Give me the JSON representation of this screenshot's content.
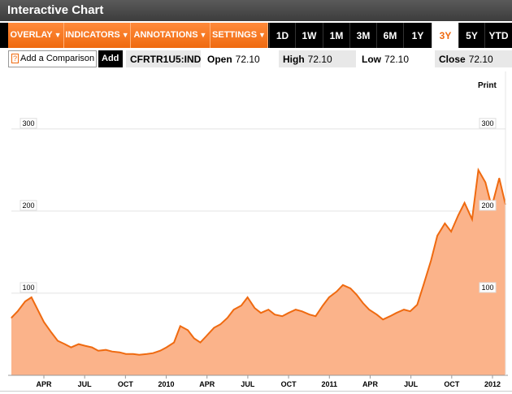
{
  "window": {
    "title": "Interactive Chart"
  },
  "toolbar": {
    "menus": [
      {
        "label": "OVERLAY",
        "arrow": "▼"
      },
      {
        "label": "INDICATORS",
        "arrow": "▼"
      },
      {
        "label": "ANNOTATIONS",
        "arrow": "▼"
      },
      {
        "label": "SETTINGS",
        "arrow": "▼"
      }
    ],
    "ranges": [
      "1D",
      "1W",
      "1M",
      "3M",
      "6M",
      "1Y",
      "3Y",
      "5Y",
      "YTD"
    ],
    "active_range": "3Y"
  },
  "info": {
    "compare_help": "?",
    "compare_label": "Add a Comparison",
    "add_label": "Add",
    "ticker": "CFRTR1U5:IND",
    "open_label": "Open",
    "open_value": "72.10",
    "high_label": "High",
    "high_value": "72.10",
    "low_label": "Low",
    "low_value": "72.10",
    "close_label": "Close",
    "close_value": "72.10"
  },
  "print_label": "Print",
  "chart_data": {
    "type": "area",
    "title": "",
    "xlabel": "",
    "ylabel": "",
    "ylim": [
      0,
      370
    ],
    "y_ticks_left": [
      100,
      200,
      300
    ],
    "y_ticks_right": [
      100,
      200,
      300
    ],
    "x_tick_labels": [
      "APR",
      "JUL",
      "OCT",
      "2010",
      "APR",
      "JUL",
      "OCT",
      "2011",
      "APR",
      "JUL",
      "OCT",
      "2012"
    ],
    "grid": "horizontal",
    "series": [
      {
        "x": [
          "2009-01-01",
          "2009-01-15",
          "2009-02-01",
          "2009-02-15",
          "2009-03-01",
          "2009-03-15",
          "2009-04-01",
          "2009-04-15",
          "2009-05-01",
          "2009-05-15",
          "2009-06-01",
          "2009-06-15",
          "2009-07-01",
          "2009-07-15",
          "2009-08-01",
          "2009-08-15",
          "2009-09-01",
          "2009-09-15",
          "2009-10-01",
          "2009-10-15",
          "2009-11-01",
          "2009-11-15",
          "2009-12-01",
          "2009-12-15",
          "2010-01-01",
          "2010-01-15",
          "2010-02-01",
          "2010-02-15",
          "2010-03-01",
          "2010-03-15",
          "2010-04-01",
          "2010-04-15",
          "2010-05-01",
          "2010-05-15",
          "2010-06-01",
          "2010-06-15",
          "2010-07-01",
          "2010-07-15",
          "2010-08-01",
          "2010-08-15",
          "2010-09-01",
          "2010-09-15",
          "2010-10-01",
          "2010-10-15",
          "2010-11-01",
          "2010-11-15",
          "2010-12-01",
          "2010-12-15",
          "2011-01-01",
          "2011-01-15",
          "2011-02-01",
          "2011-02-15",
          "2011-03-01",
          "2011-03-15",
          "2011-04-01",
          "2011-04-15",
          "2011-05-01",
          "2011-05-15",
          "2011-06-01",
          "2011-06-15",
          "2011-07-01",
          "2011-07-15",
          "2011-08-01",
          "2011-08-15",
          "2011-09-01",
          "2011-09-15",
          "2011-10-01",
          "2011-10-15",
          "2011-11-01",
          "2011-11-15",
          "2011-12-01",
          "2011-12-15",
          "2012-01-01",
          "2012-01-15"
        ],
        "values": [
          70,
          78,
          90,
          95,
          80,
          65,
          52,
          42,
          38,
          34,
          38,
          36,
          34,
          30,
          31,
          29,
          28,
          26,
          26,
          25,
          26,
          27,
          30,
          34,
          40,
          60,
          55,
          45,
          40,
          48,
          58,
          62,
          70,
          80,
          85,
          95,
          82,
          76,
          80,
          74,
          72,
          76,
          80,
          78,
          74,
          72,
          85,
          95,
          102,
          110,
          106,
          98,
          88,
          80,
          74,
          68,
          72,
          76,
          80,
          78,
          86,
          110,
          140,
          170,
          185,
          175,
          195,
          210,
          190,
          250,
          235,
          205,
          240,
          208
        ]
      }
    ]
  }
}
